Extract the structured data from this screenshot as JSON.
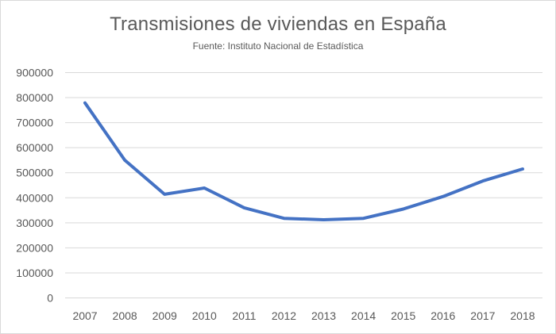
{
  "chart_data": {
    "type": "line",
    "title": "Transmisiones de viviendas en España",
    "subtitle": "Fuente: Instituto Nacional de Estadística",
    "xlabel": "",
    "ylabel": "",
    "categories": [
      "2007",
      "2008",
      "2009",
      "2010",
      "2011",
      "2012",
      "2013",
      "2014",
      "2015",
      "2016",
      "2017",
      "2018"
    ],
    "series": [
      {
        "name": "Transmisiones",
        "color": "#4472c4",
        "values": [
          779000,
          550000,
          414000,
          439000,
          360000,
          318000,
          312000,
          318000,
          355000,
          405000,
          467000,
          515000
        ]
      }
    ],
    "ylim": [
      0,
      900000
    ],
    "yticks": [
      "0",
      "100000",
      "200000",
      "300000",
      "400000",
      "500000",
      "600000",
      "700000",
      "800000",
      "900000"
    ],
    "grid": true,
    "legend": "none"
  }
}
